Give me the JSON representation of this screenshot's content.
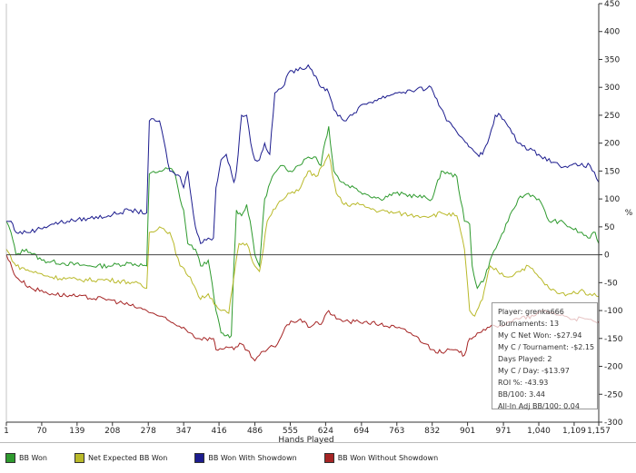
{
  "chart_data": {
    "type": "line",
    "title": "",
    "xlabel": "Hands Played",
    "ylabel": "%",
    "x_ticks": [
      "1",
      "70",
      "139",
      "208",
      "278",
      "347",
      "416",
      "486",
      "555",
      "624",
      "694",
      "763",
      "832",
      "901",
      "971",
      "1,040",
      "1,109",
      "1,157"
    ],
    "y_ticks": [
      "450",
      "400",
      "350",
      "300",
      "250",
      "200",
      "150",
      "100",
      "50",
      "0",
      "-50",
      "-100",
      "-150",
      "-200",
      "-250",
      "-300"
    ],
    "xlim": [
      1,
      1157
    ],
    "ylim": [
      -300,
      450
    ],
    "grid": false,
    "legend_position": "bottom",
    "series": [
      {
        "name": "BB Won",
        "color": "#2e9a2e",
        "points": [
          [
            1,
            60
          ],
          [
            10,
            40
          ],
          [
            20,
            0
          ],
          [
            40,
            10
          ],
          [
            70,
            -10
          ],
          [
            110,
            -15
          ],
          [
            160,
            -20
          ],
          [
            200,
            -20
          ],
          [
            240,
            -15
          ],
          [
            275,
            -20
          ],
          [
            280,
            145
          ],
          [
            300,
            150
          ],
          [
            320,
            155
          ],
          [
            330,
            145
          ],
          [
            340,
            100
          ],
          [
            347,
            80
          ],
          [
            355,
            20
          ],
          [
            370,
            10
          ],
          [
            380,
            -20
          ],
          [
            395,
            -10
          ],
          [
            410,
            -100
          ],
          [
            420,
            -140
          ],
          [
            430,
            -145
          ],
          [
            440,
            -145
          ],
          [
            445,
            -20
          ],
          [
            450,
            80
          ],
          [
            460,
            70
          ],
          [
            470,
            90
          ],
          [
            480,
            40
          ],
          [
            486,
            0
          ],
          [
            495,
            -20
          ],
          [
            505,
            100
          ],
          [
            520,
            140
          ],
          [
            540,
            160
          ],
          [
            555,
            150
          ],
          [
            570,
            160
          ],
          [
            590,
            175
          ],
          [
            605,
            175
          ],
          [
            615,
            160
          ],
          [
            620,
            190
          ],
          [
            630,
            230
          ],
          [
            640,
            150
          ],
          [
            655,
            130
          ],
          [
            680,
            120
          ],
          [
            700,
            110
          ],
          [
            730,
            100
          ],
          [
            760,
            110
          ],
          [
            800,
            105
          ],
          [
            832,
            100
          ],
          [
            850,
            150
          ],
          [
            865,
            145
          ],
          [
            880,
            140
          ],
          [
            895,
            60
          ],
          [
            905,
            55
          ],
          [
            910,
            -20
          ],
          [
            920,
            -60
          ],
          [
            935,
            -40
          ],
          [
            945,
            -10
          ],
          [
            960,
            20
          ],
          [
            980,
            60
          ],
          [
            1000,
            100
          ],
          [
            1020,
            110
          ],
          [
            1040,
            100
          ],
          [
            1060,
            60
          ],
          [
            1080,
            60
          ],
          [
            1100,
            50
          ],
          [
            1120,
            40
          ],
          [
            1140,
            30
          ],
          [
            1150,
            40
          ],
          [
            1157,
            20
          ]
        ]
      },
      {
        "name": "Net Expected BB Won",
        "color": "#b9b92a",
        "points": [
          [
            1,
            10
          ],
          [
            20,
            -20
          ],
          [
            50,
            -30
          ],
          [
            90,
            -40
          ],
          [
            140,
            -45
          ],
          [
            200,
            -45
          ],
          [
            250,
            -50
          ],
          [
            275,
            -60
          ],
          [
            280,
            40
          ],
          [
            300,
            50
          ],
          [
            320,
            40
          ],
          [
            340,
            -20
          ],
          [
            360,
            -40
          ],
          [
            380,
            -80
          ],
          [
            395,
            -70
          ],
          [
            410,
            -90
          ],
          [
            420,
            -100
          ],
          [
            435,
            -105
          ],
          [
            445,
            -40
          ],
          [
            455,
            20
          ],
          [
            470,
            20
          ],
          [
            486,
            -20
          ],
          [
            495,
            -30
          ],
          [
            510,
            60
          ],
          [
            530,
            90
          ],
          [
            555,
            110
          ],
          [
            575,
            120
          ],
          [
            590,
            150
          ],
          [
            605,
            140
          ],
          [
            620,
            160
          ],
          [
            630,
            180
          ],
          [
            645,
            110
          ],
          [
            660,
            90
          ],
          [
            690,
            90
          ],
          [
            720,
            80
          ],
          [
            760,
            75
          ],
          [
            800,
            70
          ],
          [
            832,
            70
          ],
          [
            850,
            75
          ],
          [
            880,
            70
          ],
          [
            895,
            10
          ],
          [
            905,
            -100
          ],
          [
            915,
            -110
          ],
          [
            930,
            -80
          ],
          [
            945,
            -20
          ],
          [
            960,
            -30
          ],
          [
            980,
            -40
          ],
          [
            1000,
            -30
          ],
          [
            1020,
            -20
          ],
          [
            1040,
            -40
          ],
          [
            1060,
            -60
          ],
          [
            1080,
            -70
          ],
          [
            1100,
            -70
          ],
          [
            1120,
            -65
          ],
          [
            1140,
            -70
          ],
          [
            1157,
            -75
          ]
        ]
      },
      {
        "name": "BB Won With Showdown",
        "color": "#1c1c8e",
        "points": [
          [
            1,
            60
          ],
          [
            10,
            60
          ],
          [
            20,
            40
          ],
          [
            40,
            40
          ],
          [
            60,
            45
          ],
          [
            90,
            55
          ],
          [
            120,
            60
          ],
          [
            160,
            65
          ],
          [
            200,
            70
          ],
          [
            240,
            80
          ],
          [
            275,
            75
          ],
          [
            280,
            240
          ],
          [
            300,
            240
          ],
          [
            320,
            150
          ],
          [
            340,
            140
          ],
          [
            347,
            120
          ],
          [
            355,
            150
          ],
          [
            370,
            50
          ],
          [
            380,
            20
          ],
          [
            395,
            30
          ],
          [
            405,
            30
          ],
          [
            410,
            120
          ],
          [
            420,
            170
          ],
          [
            430,
            180
          ],
          [
            445,
            130
          ],
          [
            450,
            150
          ],
          [
            460,
            250
          ],
          [
            470,
            250
          ],
          [
            478,
            200
          ],
          [
            486,
            170
          ],
          [
            495,
            170
          ],
          [
            505,
            200
          ],
          [
            515,
            180
          ],
          [
            525,
            290
          ],
          [
            540,
            300
          ],
          [
            555,
            330
          ],
          [
            570,
            330
          ],
          [
            590,
            340
          ],
          [
            605,
            320
          ],
          [
            615,
            300
          ],
          [
            620,
            300
          ],
          [
            630,
            290
          ],
          [
            640,
            260
          ],
          [
            660,
            240
          ],
          [
            700,
            270
          ],
          [
            760,
            290
          ],
          [
            800,
            295
          ],
          [
            830,
            300
          ],
          [
            860,
            240
          ],
          [
            880,
            220
          ],
          [
            890,
            210
          ],
          [
            900,
            200
          ],
          [
            910,
            190
          ],
          [
            920,
            180
          ],
          [
            930,
            180
          ],
          [
            940,
            200
          ],
          [
            955,
            250
          ],
          [
            965,
            250
          ],
          [
            980,
            230
          ],
          [
            1000,
            200
          ],
          [
            1040,
            180
          ],
          [
            1080,
            160
          ],
          [
            1100,
            160
          ],
          [
            1120,
            160
          ],
          [
            1140,
            160
          ],
          [
            1157,
            130
          ]
        ]
      },
      {
        "name": "BB Won Without Showdown",
        "color": "#a52424",
        "points": [
          [
            1,
            0
          ],
          [
            20,
            -40
          ],
          [
            50,
            -60
          ],
          [
            90,
            -70
          ],
          [
            140,
            -75
          ],
          [
            200,
            -80
          ],
          [
            240,
            -90
          ],
          [
            275,
            -100
          ],
          [
            300,
            -110
          ],
          [
            330,
            -125
          ],
          [
            347,
            -130
          ],
          [
            360,
            -140
          ],
          [
            375,
            -150
          ],
          [
            390,
            -150
          ],
          [
            405,
            -150
          ],
          [
            410,
            -170
          ],
          [
            430,
            -165
          ],
          [
            445,
            -170
          ],
          [
            460,
            -160
          ],
          [
            486,
            -190
          ],
          [
            495,
            -180
          ],
          [
            510,
            -170
          ],
          [
            530,
            -160
          ],
          [
            545,
            -130
          ],
          [
            560,
            -120
          ],
          [
            575,
            -115
          ],
          [
            590,
            -130
          ],
          [
            605,
            -120
          ],
          [
            615,
            -125
          ],
          [
            630,
            -100
          ],
          [
            645,
            -115
          ],
          [
            670,
            -120
          ],
          [
            700,
            -120
          ],
          [
            730,
            -125
          ],
          [
            760,
            -130
          ],
          [
            790,
            -140
          ],
          [
            820,
            -160
          ],
          [
            832,
            -170
          ],
          [
            850,
            -175
          ],
          [
            870,
            -170
          ],
          [
            885,
            -175
          ],
          [
            895,
            -180
          ],
          [
            905,
            -150
          ],
          [
            920,
            -140
          ],
          [
            940,
            -130
          ],
          [
            960,
            -130
          ],
          [
            980,
            -120
          ],
          [
            1000,
            -115
          ],
          [
            1030,
            -110
          ],
          [
            1050,
            -100
          ],
          [
            1070,
            -105
          ],
          [
            1090,
            -110
          ],
          [
            1110,
            -115
          ],
          [
            1130,
            -115
          ],
          [
            1150,
            -120
          ],
          [
            1157,
            -120
          ]
        ]
      }
    ]
  },
  "stats": {
    "lines": [
      "Player: grenka666",
      "Tournaments: 13",
      "My C Net Won: -$27.94",
      "My C / Tournament: -$2.15",
      "Days Played: 2",
      "My C / Day: -$13.97",
      "ROI %: -43.93",
      "BB/100: 3.44",
      "All-In Adj BB/100: 0.04"
    ]
  },
  "colors": {
    "axis": "#333333",
    "zero_line": "#333333",
    "legend_bb_won": "#2e9a2e",
    "legend_net_expected": "#b9b92a",
    "legend_with_showdown": "#1c1c8e",
    "legend_without_showdown": "#a52424"
  }
}
